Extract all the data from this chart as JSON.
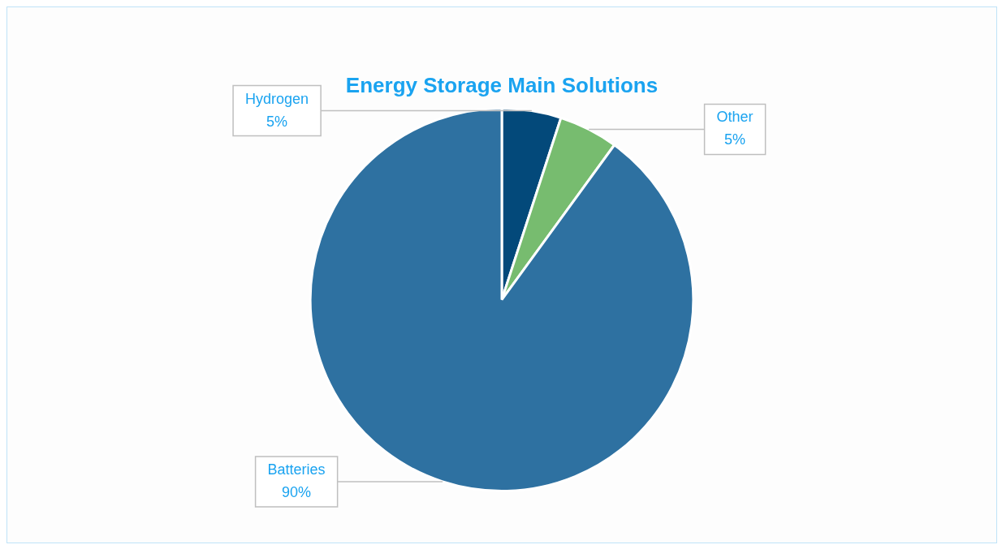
{
  "chart_data": {
    "type": "pie",
    "title": "Energy Storage Main Solutions",
    "categories": [
      "Hydrogen",
      "Other",
      "Batteries"
    ],
    "values": [
      5,
      5,
      90
    ],
    "value_labels": [
      "5%",
      "5%",
      "90%"
    ],
    "colors": [
      "#03497a",
      "#77bc6f",
      "#2e71a1"
    ]
  }
}
